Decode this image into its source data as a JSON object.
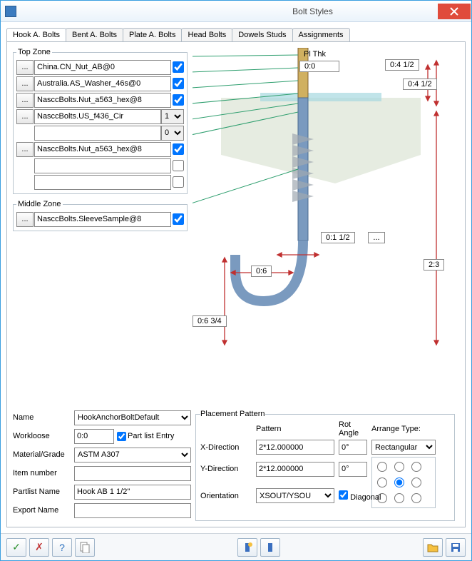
{
  "window": {
    "title": "Bolt Styles"
  },
  "tabs": [
    "Hook A. Bolts",
    "Bent A. Bolts",
    "Plate A. Bolts",
    "Head Bolts",
    "Dowels Studs",
    "Assignments"
  ],
  "active_tab": 0,
  "top_zone": {
    "legend": "Top Zone",
    "rows": [
      {
        "btn": true,
        "value": "China.CN_Nut_AB@0",
        "side": "check",
        "checked": true
      },
      {
        "btn": true,
        "value": "Australia.AS_Washer_46s@0",
        "side": "check",
        "checked": true
      },
      {
        "btn": true,
        "value": "NasccBolts.Nut_a563_hex@8",
        "side": "check",
        "checked": true
      },
      {
        "btn": true,
        "value": "NasccBolts.US_f436_Cir",
        "side": "select",
        "select": "1"
      },
      {
        "btn": false,
        "value": "",
        "side": "select",
        "select": "0"
      },
      {
        "btn": true,
        "value": "NasccBolts.Nut_a563_hex@8",
        "side": "check",
        "checked": true
      },
      {
        "btn": false,
        "value": "",
        "side": "check",
        "checked": false
      },
      {
        "btn": false,
        "value": "",
        "side": "check",
        "checked": false
      }
    ]
  },
  "middle_zone": {
    "legend": "Middle Zone",
    "rows": [
      {
        "btn": true,
        "value": "NasccBolts.SleeveSample@8",
        "side": "check",
        "checked": true
      }
    ]
  },
  "diagram": {
    "pl_thk_label": "Pl Thk",
    "pl_thk_value": "0:0",
    "dim1": "0:4 1/2",
    "dim2": "0:4 1/2",
    "dim3": "0:1 1/2",
    "dim_btn": "...",
    "dim4": "2:3",
    "dim5": "0:6",
    "dim6": "0:6 3/4"
  },
  "props": {
    "name_label": "Name",
    "name": "HookAnchorBoltDefault",
    "workloose_label": "Workloose",
    "workloose": "0:0",
    "partlist_entry_label": "Part list Entry",
    "partlist_entry": true,
    "material_label": "Material/Grade",
    "material": "ASTM A307",
    "item_label": "Item number",
    "item": "",
    "partlist_label": "Partlist Name",
    "partlist": "Hook AB 1 1/2\"",
    "export_label": "Export Name",
    "export": ""
  },
  "pp": {
    "legend": "Placement Pattern",
    "pattern_header": "Pattern",
    "rot_header": "Rot Angle",
    "arrange_header": "Arrange Type:",
    "xdir_label": "X-Direction",
    "xdir": "2*12.000000",
    "xrot": "0°",
    "ydir_label": "Y-Direction",
    "ydir": "2*12.000000",
    "yrot": "0°",
    "orient_label": "Orientation",
    "orient": "XSOUT/YSOU",
    "diag_label": "Diagonal",
    "diag": true,
    "arrange_type": "Rectangular",
    "radio_selected": 4
  },
  "colors": {
    "accent": "#3b9fe0",
    "close": "#e04b3b",
    "bolt": "#6b8fb0",
    "concrete": "#d8e0d8",
    "dim": "#c03030",
    "lead": "#2f9f6f"
  }
}
